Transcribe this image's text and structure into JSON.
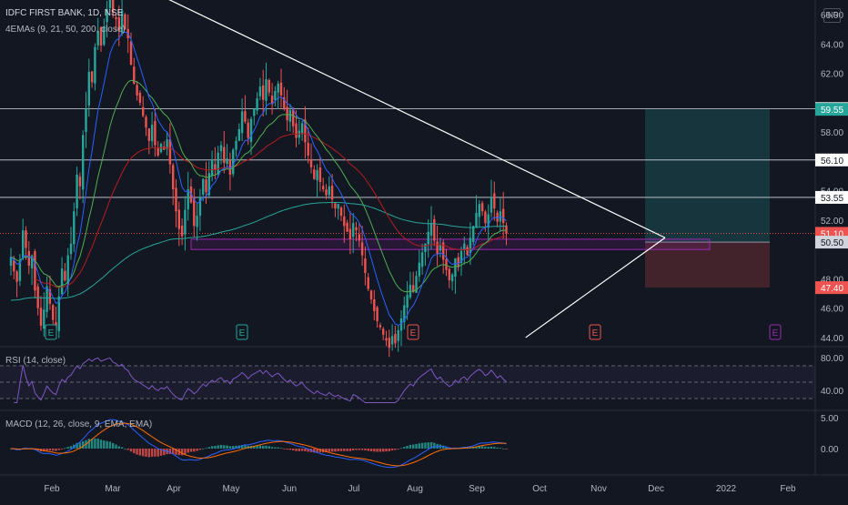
{
  "header": {
    "title": "IDFC FIRST BANK, 1D, NSE",
    "ema_label": "4EMAs (9, 21, 50, 200, close)",
    "currency": "INR"
  },
  "rsi": {
    "label": "RSI (14, close)",
    "ticks": [
      "80.00",
      "40.00"
    ]
  },
  "macd": {
    "label": "MACD (12, 26, close, 9, EMA, EMA)",
    "ticks": [
      "5.00",
      "0.00"
    ]
  },
  "price_axis": {
    "ticks": [
      "66.00",
      "64.00",
      "62.00",
      "58.00",
      "54.00",
      "52.00",
      "48.00",
      "46.00",
      "44.00"
    ]
  },
  "badges": [
    {
      "text": "59.60",
      "price": 59.6,
      "bg": "#ffffff",
      "fg": "#131722"
    },
    {
      "text": "59.55",
      "price": 59.55,
      "bg": "#26a69a",
      "fg": "#ffffff"
    },
    {
      "text": "56.10",
      "price": 56.1,
      "bg": "#ffffff",
      "fg": "#131722"
    },
    {
      "text": "53.55",
      "price": 53.55,
      "bg": "#ffffff",
      "fg": "#131722"
    },
    {
      "text": "51.10",
      "price": 51.1,
      "bg": "#ef5350",
      "fg": "#ffffff"
    },
    {
      "text": "50.50",
      "price": 50.5,
      "bg": "#d1d4dc",
      "fg": "#131722"
    },
    {
      "text": "47.40",
      "price": 47.4,
      "bg": "#ef5350",
      "fg": "#ffffff"
    }
  ],
  "time_axis": [
    "Feb",
    "Mar",
    "Apr",
    "May",
    "Jun",
    "Jul",
    "Aug",
    "Sep",
    "Oct",
    "Nov",
    "Dec",
    "2022",
    "Feb"
  ],
  "event_markers": [
    {
      "text": "E",
      "month": "Jan",
      "color": "#26a69a"
    },
    {
      "text": "E",
      "month": "May",
      "color": "#26a69a"
    },
    {
      "text": "E",
      "month": "Aug",
      "color": "#ef5350"
    },
    {
      "text": "E",
      "month": "Oct",
      "color": "#ef5350"
    },
    {
      "text": "E",
      "month": "Jan",
      "color": "#9c27b0"
    }
  ],
  "colors": {
    "background": "#131722",
    "up": "#26a69a",
    "down": "#ef5350",
    "ema9": "#2962ff",
    "ema21": "#4caf50",
    "ema50": "#b71c1c",
    "ema200": "#26a69a",
    "rsi": "#7e57c2",
    "macd": "#2962ff",
    "signal": "#ff6d00"
  },
  "chart_data": {
    "type": "candlestick",
    "symbol": "IDFC FIRST BANK",
    "interval": "1D",
    "exchange": "NSE",
    "ylim": [
      43.5,
      67
    ],
    "grid": false,
    "horizontal_levels": [
      59.6,
      56.1,
      53.55
    ],
    "long_position": {
      "entry": 50.5,
      "target": 59.55,
      "stop": 47.4
    },
    "support_zone": [
      50.0,
      50.7
    ],
    "last_price": 51.1,
    "trendlines": [
      {
        "name": "resistance",
        "from": {
          "date": "2021-03-12",
          "price": 67.5
        },
        "to": {
          "date": "2021-11-05",
          "price": 50.8
        }
      },
      {
        "name": "support",
        "from": {
          "date": "2021-09-01",
          "price": 44.0
        },
        "to": {
          "date": "2021-11-05",
          "price": 50.8
        }
      }
    ],
    "close_series": {
      "start": "2021-01-04",
      "values": [
        49.5,
        48.5,
        47.8,
        49.2,
        51.3,
        50.1,
        48.9,
        49.6,
        47.2,
        46.0,
        44.8,
        45.9,
        47.5,
        46.3,
        45.2,
        44.6,
        46.8,
        48.7,
        47.9,
        49.6,
        50.4,
        52.6,
        55.1,
        54.3,
        57.8,
        59.6,
        62.1,
        61.4,
        63.8,
        64.9,
        63.9,
        65.2,
        66.4,
        67.3,
        66.1,
        65.7,
        64.9,
        66.3,
        65.0,
        64.4,
        62.6,
        61.3,
        60.5,
        60.0,
        59.1,
        58.3,
        57.4,
        58.5,
        57.1,
        56.4,
        57.2,
        56.8,
        57.5,
        55.8,
        54.1,
        52.6,
        51.4,
        50.9,
        52.7,
        54.1,
        53.2,
        51.6,
        52.3,
        53.6,
        54.8,
        53.9,
        55.2,
        56.1,
        55.4,
        56.6,
        57.1,
        55.9,
        56.2,
        55.1,
        56.8,
        57.4,
        58.2,
        59.4,
        58.7,
        57.6,
        58.9,
        59.6,
        60.3,
        61.1,
        60.2,
        61.6,
        60.7,
        59.9,
        60.8,
        61.3,
        60.5,
        59.6,
        58.8,
        59.5,
        58.4,
        57.6,
        58.1,
        58.6,
        57.3,
        56.4,
        55.6,
        54.8,
        55.4,
        54.6,
        54.1,
        53.7,
        54.3,
        53.4,
        52.8,
        53.1,
        52.3,
        51.6,
        51.2,
        50.7,
        51.8,
        51.3,
        50.6,
        49.6,
        48.4,
        47.3,
        46.6,
        45.8,
        45.1,
        44.7,
        44.2,
        43.8,
        43.3,
        44.1,
        43.6,
        44.5,
        45.3,
        46.2,
        46.9,
        47.6,
        47.1,
        48.2,
        49.1,
        49.8,
        50.4,
        51.2,
        51.8,
        50.6,
        49.7,
        50.3,
        49.3,
        48.6,
        47.9,
        48.3,
        49.4,
        48.8,
        49.9,
        50.4,
        49.6,
        50.8,
        51.6,
        52.5,
        53.1,
        52.6,
        51.8,
        52.4,
        53.6,
        52.8,
        51.9,
        52.6,
        51.8,
        51.1
      ]
    },
    "rsi": {
      "levels": [
        70,
        50,
        30
      ],
      "y_ticks": [
        80,
        40
      ]
    },
    "macd": {
      "y_ticks": [
        5.0,
        0.0
      ]
    }
  }
}
